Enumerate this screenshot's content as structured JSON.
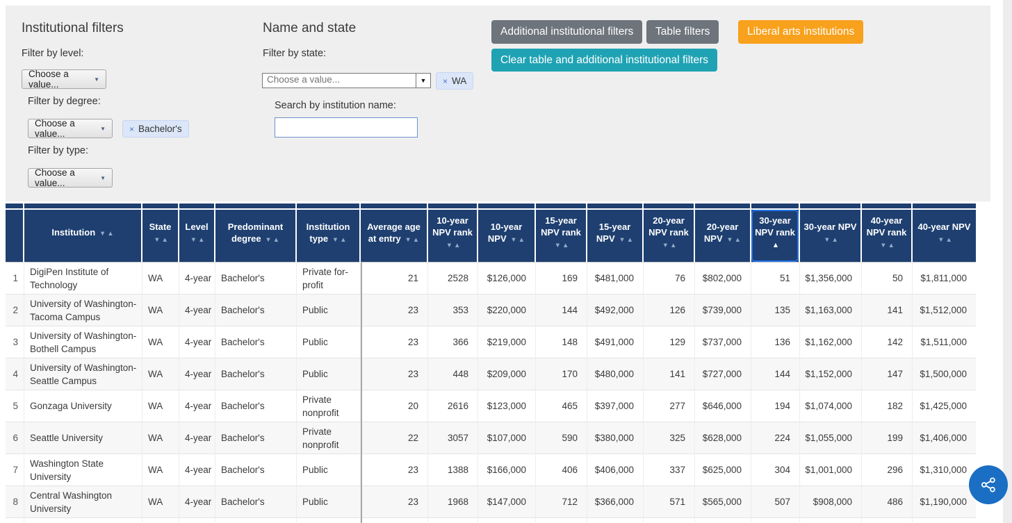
{
  "icons": {
    "caret_down": "▼",
    "combo_caret": "▼",
    "remove": "×",
    "sort_desc": "▼",
    "sort_asc": "▲",
    "share": "share-nodes"
  },
  "colors": {
    "panel_bg": "#efefef",
    "header_bg": "#1e3f70",
    "selected_column_outline": "#2273e8",
    "button_gray": "#6d747c",
    "button_orange": "#f8a11c",
    "button_teal": "#1fa3b4",
    "share_blue": "#1a6fc4",
    "chip_bg": "#dbe6f8"
  },
  "institutional_filters": {
    "title": "Institutional filters",
    "level_label": "Filter by level:",
    "level_value": "Choose a value...",
    "degree_label": "Filter by degree:",
    "degree_value": "Choose a value...",
    "degree_selected": "Bachelor's",
    "type_label": "Filter by type:",
    "type_value": "Choose a value..."
  },
  "name_and_state": {
    "title": "Name and state",
    "state_label": "Filter by state:",
    "state_value": "Choose a value...",
    "state_selected": "WA",
    "search_label": "Search by institution name:",
    "search_value": ""
  },
  "action_buttons": {
    "additional": "Additional institutional filters",
    "table_filters": "Table filters",
    "liberal_arts": "Liberal arts institutions",
    "clear": "Clear table and additional institutional filters"
  },
  "table": {
    "columns": [
      {
        "label": "",
        "sort": "none"
      },
      {
        "label": "Institution",
        "sort": "both"
      },
      {
        "label": "State",
        "sort": "both"
      },
      {
        "label": "Level",
        "sort": "both"
      },
      {
        "label": "Predominant degree",
        "sort": "both"
      },
      {
        "label": "Institution type",
        "sort": "both"
      },
      {
        "label": "Average age at entry",
        "sort": "both"
      },
      {
        "label": "10-year NPV rank",
        "sort": "both"
      },
      {
        "label": "10-year NPV",
        "sort": "both"
      },
      {
        "label": "15-year NPV rank",
        "sort": "both"
      },
      {
        "label": "15-year NPV",
        "sort": "both"
      },
      {
        "label": "20-year NPV rank",
        "sort": "both"
      },
      {
        "label": "20-year NPV",
        "sort": "both"
      },
      {
        "label": "30-year NPV rank",
        "sort": "asc",
        "selected": true
      },
      {
        "label": "30-year NPV",
        "sort": "both"
      },
      {
        "label": "40-year NPV rank",
        "sort": "both"
      },
      {
        "label": "40-year NPV",
        "sort": "both"
      }
    ],
    "rows": [
      [
        "1",
        "DigiPen Institute of Technology",
        "WA",
        "4-year",
        "Bachelor's",
        "Private for-profit",
        "21",
        "2528",
        "$126,000",
        "169",
        "$481,000",
        "76",
        "$802,000",
        "51",
        "$1,356,000",
        "50",
        "$1,811,000"
      ],
      [
        "2",
        "University of Washington-Tacoma Campus",
        "WA",
        "4-year",
        "Bachelor's",
        "Public",
        "23",
        "353",
        "$220,000",
        "144",
        "$492,000",
        "126",
        "$739,000",
        "135",
        "$1,163,000",
        "141",
        "$1,512,000"
      ],
      [
        "3",
        "University of Washington-Bothell Campus",
        "WA",
        "4-year",
        "Bachelor's",
        "Public",
        "23",
        "366",
        "$219,000",
        "148",
        "$491,000",
        "129",
        "$737,000",
        "136",
        "$1,162,000",
        "142",
        "$1,511,000"
      ],
      [
        "4",
        "University of Washington-Seattle Campus",
        "WA",
        "4-year",
        "Bachelor's",
        "Public",
        "23",
        "448",
        "$209,000",
        "170",
        "$480,000",
        "141",
        "$727,000",
        "144",
        "$1,152,000",
        "147",
        "$1,500,000"
      ],
      [
        "5",
        "Gonzaga University",
        "WA",
        "4-year",
        "Bachelor's",
        "Private nonprofit",
        "20",
        "2616",
        "$123,000",
        "465",
        "$397,000",
        "277",
        "$646,000",
        "194",
        "$1,074,000",
        "182",
        "$1,425,000"
      ],
      [
        "6",
        "Seattle University",
        "WA",
        "4-year",
        "Bachelor's",
        "Private nonprofit",
        "22",
        "3057",
        "$107,000",
        "590",
        "$380,000",
        "325",
        "$628,000",
        "224",
        "$1,055,000",
        "199",
        "$1,406,000"
      ],
      [
        "7",
        "Washington State University",
        "WA",
        "4-year",
        "Bachelor's",
        "Public",
        "23",
        "1388",
        "$166,000",
        "406",
        "$406,000",
        "337",
        "$625,000",
        "304",
        "$1,001,000",
        "296",
        "$1,310,000"
      ],
      [
        "8",
        "Central Washington University",
        "WA",
        "4-year",
        "Bachelor's",
        "Public",
        "23",
        "1968",
        "$147,000",
        "712",
        "$366,000",
        "571",
        "$565,000",
        "507",
        "$908,000",
        "486",
        "$1,190,000"
      ]
    ]
  }
}
